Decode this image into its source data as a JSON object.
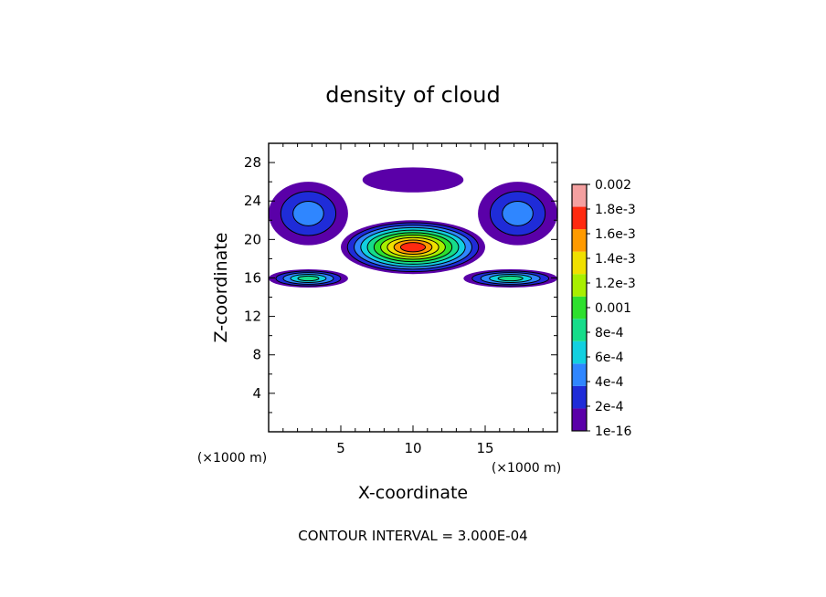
{
  "chart_data": {
    "type": "heatmap",
    "title": "density of cloud",
    "xlabel": "X-coordinate",
    "ylabel": "Z-coordinate",
    "x_unit": "(×1000 m)",
    "z_unit": "(×1000 m)",
    "xlim": [
      0,
      20
    ],
    "ylim": [
      0,
      30
    ],
    "x_ticks": [
      5,
      10,
      15
    ],
    "y_ticks": [
      4,
      8,
      12,
      16,
      20,
      24,
      28
    ],
    "note": "CONTOUR INTERVAL = 3.000E-04",
    "colorbar": {
      "labels": [
        "0.002",
        "1.8e-3",
        "1.6e-3",
        "1.4e-3",
        "1.2e-3",
        "0.001",
        "8e-4",
        "6e-4",
        "4e-4",
        "2e-4",
        "1e-16"
      ],
      "levels": [
        1e-16,
        0.0002,
        0.0004,
        0.0006,
        0.0008,
        0.001,
        0.0012,
        0.0014,
        0.0016,
        0.0018,
        0.002
      ],
      "colors": [
        "#5a00a8",
        "#1f2cd8",
        "#2f86ff",
        "#12d0e0",
        "#16dc8a",
        "#2ee02e",
        "#a8ef00",
        "#f0e000",
        "#ff9a00",
        "#ff2a10",
        "#f4a0a0"
      ]
    },
    "regions": [
      {
        "name": "top cap",
        "x": [
          6.5,
          13.5
        ],
        "z": [
          24.9,
          27.5
        ],
        "peak": 5e-05
      },
      {
        "name": "left lobe",
        "x": [
          0,
          5.5
        ],
        "z": [
          19.4,
          26
        ],
        "peak": 0.0004
      },
      {
        "name": "right lobe",
        "x": [
          14.5,
          20
        ],
        "z": [
          19.4,
          26
        ],
        "peak": 0.0004
      },
      {
        "name": "central core",
        "x": [
          5,
          15
        ],
        "z": [
          16.4,
          22
        ],
        "peak": 0.0019
      },
      {
        "name": "left lower band",
        "x": [
          0,
          5.5
        ],
        "z": [
          15,
          16.9
        ],
        "peak": 0.0009
      },
      {
        "name": "right lower band",
        "x": [
          13.5,
          20
        ],
        "z": [
          15,
          16.9
        ],
        "peak": 0.0009
      }
    ]
  }
}
